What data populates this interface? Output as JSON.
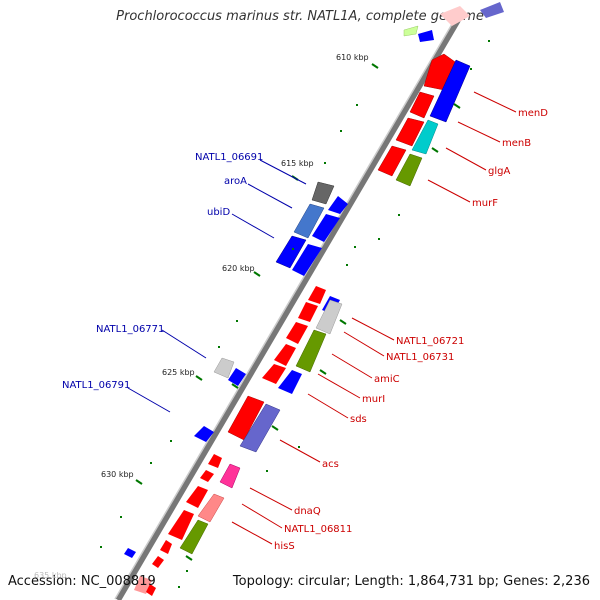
{
  "header": {
    "title": "Prochlorococcus marinus str. NATL1A, complete genome"
  },
  "footer": {
    "accession": "Accession: NC_008819",
    "summary": "Topology: circular; Length: 1,864,731 bp; Genes: 2,236"
  },
  "ticks": [
    "610 kbp",
    "615 kbp",
    "620 kbp",
    "625 kbp",
    "630 kbp",
    "635 kbp"
  ],
  "labels": {
    "right": [
      "menD",
      "menB",
      "glgA",
      "murF",
      "NATL1_06721",
      "NATL1_06731",
      "amiC",
      "murI",
      "sds",
      "acs",
      "dnaQ",
      "NATL1_06811",
      "hisS"
    ],
    "left": [
      "NATL1_06691",
      "aroA",
      "ubiD",
      "NATL1_06771",
      "NATL1_06791"
    ]
  },
  "colors": {
    "forward": "#ff0000",
    "reverse": "#0000ff",
    "backbone": "#777777",
    "tick": "#007700",
    "right_label": "#cc0000",
    "left_label": "#0000aa"
  }
}
